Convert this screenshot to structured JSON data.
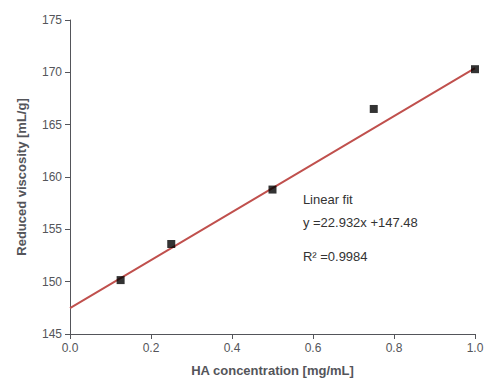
{
  "chart_data": {
    "type": "scatter",
    "xlabel": "HA concentration [mg/mL]",
    "ylabel": "Reduced viscosity [mL/g]",
    "xlim": [
      0,
      1
    ],
    "ylim": [
      145,
      175
    ],
    "xticks": [
      {
        "value": 0,
        "label": "0.0"
      },
      0.2,
      0.4,
      0.6,
      0.8,
      {
        "value": 1,
        "label": "1.0"
      }
    ],
    "yticks": [
      145,
      150,
      155,
      160,
      165,
      170,
      175
    ],
    "grid": false,
    "annotations": [
      "Linear fit",
      "y =22.932x +147.48",
      "R² =0.9984"
    ],
    "series": [
      {
        "type": "line",
        "color": "#c0504d",
        "x": [
          0,
          1
        ],
        "values": [
          147.48,
          170.412
        ]
      },
      {
        "type": "scatter",
        "color": "black",
        "marker": "square",
        "x": [
          0.125,
          0.25,
          0.5,
          0.75,
          1.0
        ],
        "values": [
          150.15,
          153.6,
          158.8,
          166.5,
          170.3
        ]
      }
    ]
  }
}
